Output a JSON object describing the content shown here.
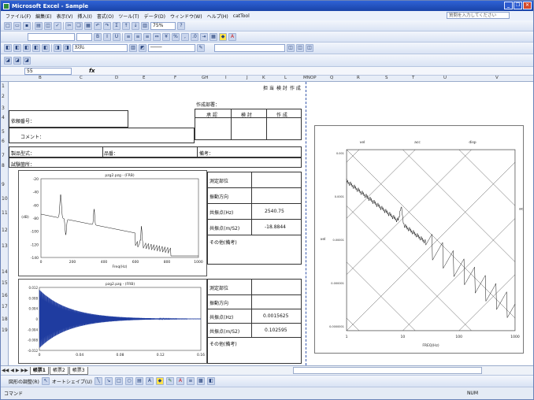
{
  "window": {
    "title": "Microsoft Excel - Sample"
  },
  "menu": {
    "items": [
      "ファイル(F)",
      "編集(E)",
      "表示(V)",
      "挿入(I)",
      "書式(O)",
      "ツール(T)",
      "データ(D)",
      "ウィンドウ(W)",
      "ヘルプ(H)",
      "catTool"
    ],
    "ask_placeholder": "質問を入力してください"
  },
  "toolbar": {
    "zoom": "75%",
    "button_label": "ｶｽﾀﾑ"
  },
  "formula": {
    "name_box": "55",
    "fx": "fx"
  },
  "columns": [
    "B",
    "C",
    "D",
    "E",
    "F",
    "GH",
    "I",
    "J",
    "K",
    "L",
    "MNOP",
    "Q",
    "R",
    "S",
    "T",
    "U",
    "V"
  ],
  "rows": [
    "1",
    "2",
    "3",
    "4",
    "5",
    "6",
    "7",
    "8",
    "9",
    "10",
    "11",
    "12",
    "13",
    "14",
    "15",
    "16",
    "17",
    "18",
    "19"
  ],
  "stamp_headers": [
    "担 当",
    "検 討",
    "作 成"
  ],
  "top_label": "作成部署：",
  "approvals": [
    "承 認",
    "検 討",
    "作 成"
  ],
  "form": {
    "request_no": "依頼番号：",
    "comment": "コメント：",
    "product_model": "製品型式：",
    "product_name": "品番：",
    "remark": "備考：",
    "test_location": "試験箇所："
  },
  "meas1": {
    "part": "測定部位",
    "direction": "振動方向",
    "freq_label": "共振点(Hz)",
    "freq_value": "2540.75",
    "val_label": "共振点(m/S2)",
    "val_value": "-18.8844",
    "other": "その他(備考)"
  },
  "meas2": {
    "part": "測定部位",
    "direction": "振動方向",
    "freq_label": "共振点(Hz)",
    "freq_value": "0.0015625",
    "val_label": "共振点(m/S2)",
    "val_value": "0.102595",
    "other": "その他(備考)"
  },
  "chart1": {
    "title": "pzg2.pzg - (FRB)",
    "xlabel": "Freq(Hz)",
    "ylabel": "(dB)",
    "xticks": [
      "0",
      "200",
      "400",
      "600",
      "800",
      "1000"
    ],
    "yticks": [
      "-20",
      "-40",
      "-60",
      "-80",
      "-100",
      "-120",
      "-140"
    ]
  },
  "chart2": {
    "title": "pzg2.pzg - (FRB)",
    "xticks": [
      "0",
      "0.04",
      "0.08",
      "0.12",
      "0.16"
    ],
    "yticks": [
      "0.012",
      "0.008",
      "0.004",
      "0",
      "-0.004",
      "-0.008",
      "-0.012"
    ]
  },
  "chart3": {
    "xticks": [
      "1",
      "10",
      "100",
      "1000"
    ],
    "yticks": [
      "0.001",
      "0.0001",
      "0.00001",
      "0.000001",
      "0.0000001"
    ],
    "xlabel": "FREQ(Hz)",
    "ylabel": "vel",
    "top_labels": [
      "vel",
      "acc",
      "disp"
    ],
    "side_label": "acc"
  },
  "sheets": {
    "tabs": [
      "帳票1",
      "帳票2",
      "帳票3"
    ],
    "active": 0
  },
  "drawing": {
    "label": "図形の調整(R)",
    "autoshapes": "オートシェイプ(U)"
  },
  "status": {
    "left": "コマンド",
    "right": "NUM"
  }
}
